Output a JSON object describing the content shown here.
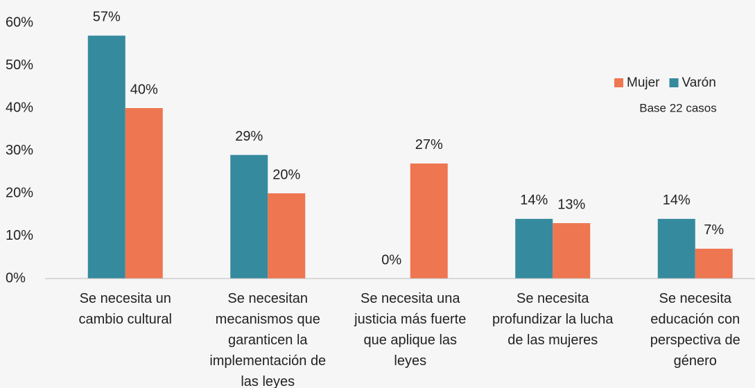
{
  "chart_data": {
    "type": "bar",
    "categories": [
      "Se necesita un cambio cultural",
      "Se necesitan mecanismos que garanticen la implementación de las leyes",
      "Se necesita una justicia más fuerte que aplique las leyes",
      "Se necesita profundizar la lucha de las mujeres",
      "Se necesita educación con perspectiva de género"
    ],
    "series": [
      {
        "name": "Varón",
        "color": "#358a9e",
        "values": [
          57,
          29,
          0,
          14,
          14
        ],
        "value_labels": [
          "57%",
          "29%",
          "0%",
          "14%",
          "14%"
        ]
      },
      {
        "name": "Mujer",
        "color": "#ee7650",
        "values": [
          40,
          20,
          27,
          13,
          7
        ],
        "value_labels": [
          "40%",
          "20%",
          "27%",
          "13%",
          "7%"
        ]
      }
    ],
    "ylim": [
      0,
      60
    ],
    "yticks": [
      {
        "value": 0,
        "label": "0%"
      },
      {
        "value": 10,
        "label": "10%"
      },
      {
        "value": 20,
        "label": "20%"
      },
      {
        "value": 30,
        "label": "30%"
      },
      {
        "value": 40,
        "label": "40%"
      },
      {
        "value": 50,
        "label": "50%"
      },
      {
        "value": 60,
        "label": "60%"
      }
    ],
    "legend_order": [
      "Mujer",
      "Varón"
    ],
    "annotation": "Base 22 casos"
  }
}
